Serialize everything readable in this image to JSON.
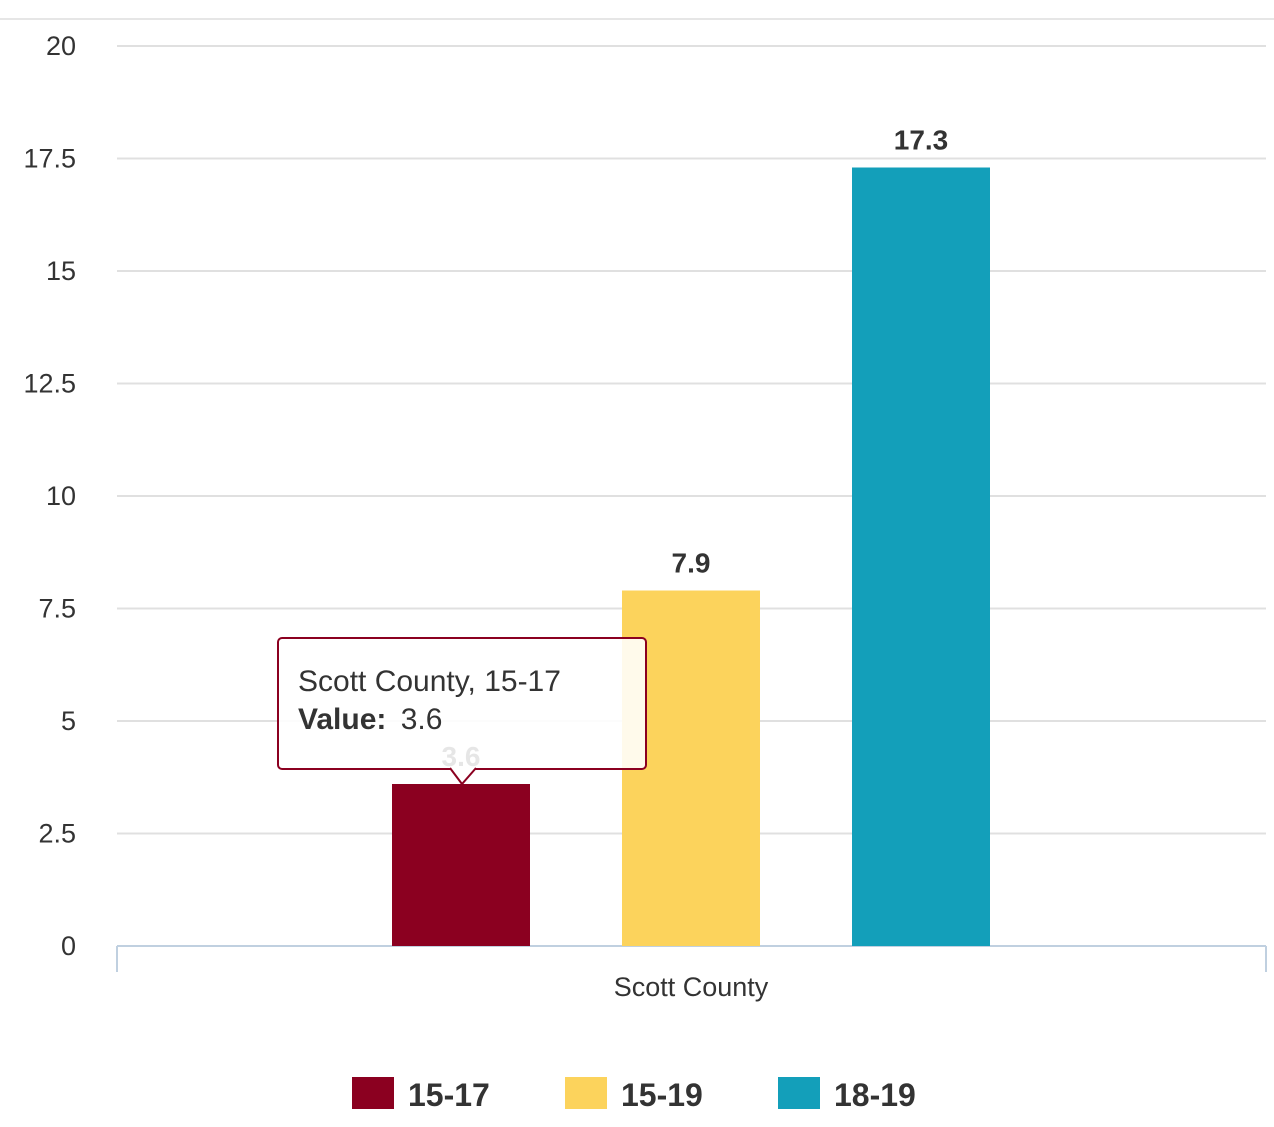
{
  "chart_data": {
    "type": "bar",
    "categories": [
      "Scott County"
    ],
    "series": [
      {
        "name": "15-17",
        "values": [
          3.6
        ],
        "color": "#8b0020"
      },
      {
        "name": "15-19",
        "values": [
          7.9
        ],
        "color": "#fcd35c"
      },
      {
        "name": "18-19",
        "values": [
          17.3
        ],
        "color": "#139fba"
      }
    ],
    "ylim": [
      0,
      20
    ],
    "yticks": [
      "0",
      "2.5",
      "5",
      "7.5",
      "10",
      "12.5",
      "15",
      "17.5",
      "20"
    ],
    "grid": true,
    "legend_position": "bottom",
    "data_labels": [
      "3.6",
      "7.9",
      "17.3"
    ],
    "tooltip": {
      "title": "Scott County, 15-17",
      "value_label": "Value:",
      "value": "3.6",
      "border_color": "#8b0020"
    }
  }
}
